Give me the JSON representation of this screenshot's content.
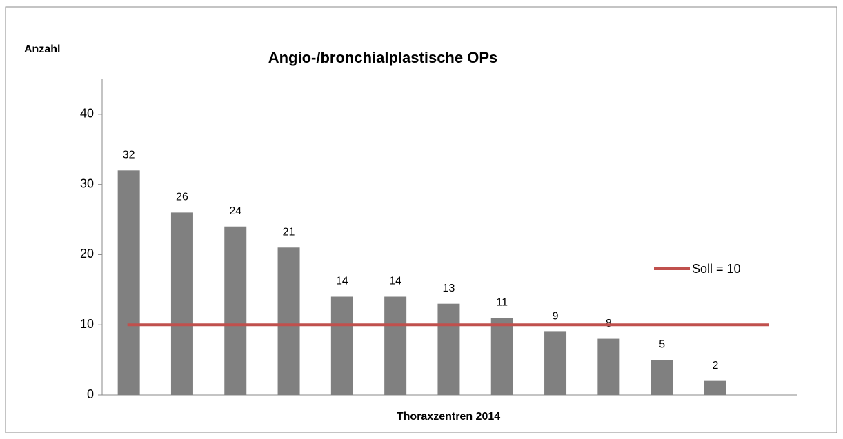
{
  "chart_data": {
    "type": "bar",
    "title": "Angio-/bronchialplastische OPs",
    "y_label": "Anzahl",
    "x_label": "Thoraxzentren 2014",
    "categories": [
      null,
      null,
      null,
      null,
      null,
      null,
      null,
      null,
      null,
      null,
      null,
      null
    ],
    "values": [
      32,
      26,
      24,
      21,
      14,
      14,
      13,
      11,
      9,
      8,
      5,
      2
    ],
    "color": "#808080",
    "ylim": [
      0,
      45
    ],
    "yticks": [
      0,
      10,
      20,
      30,
      40
    ],
    "grid": false,
    "reference_line": {
      "name": "Soll = 10",
      "value": 10,
      "color": "#c0504d"
    }
  }
}
